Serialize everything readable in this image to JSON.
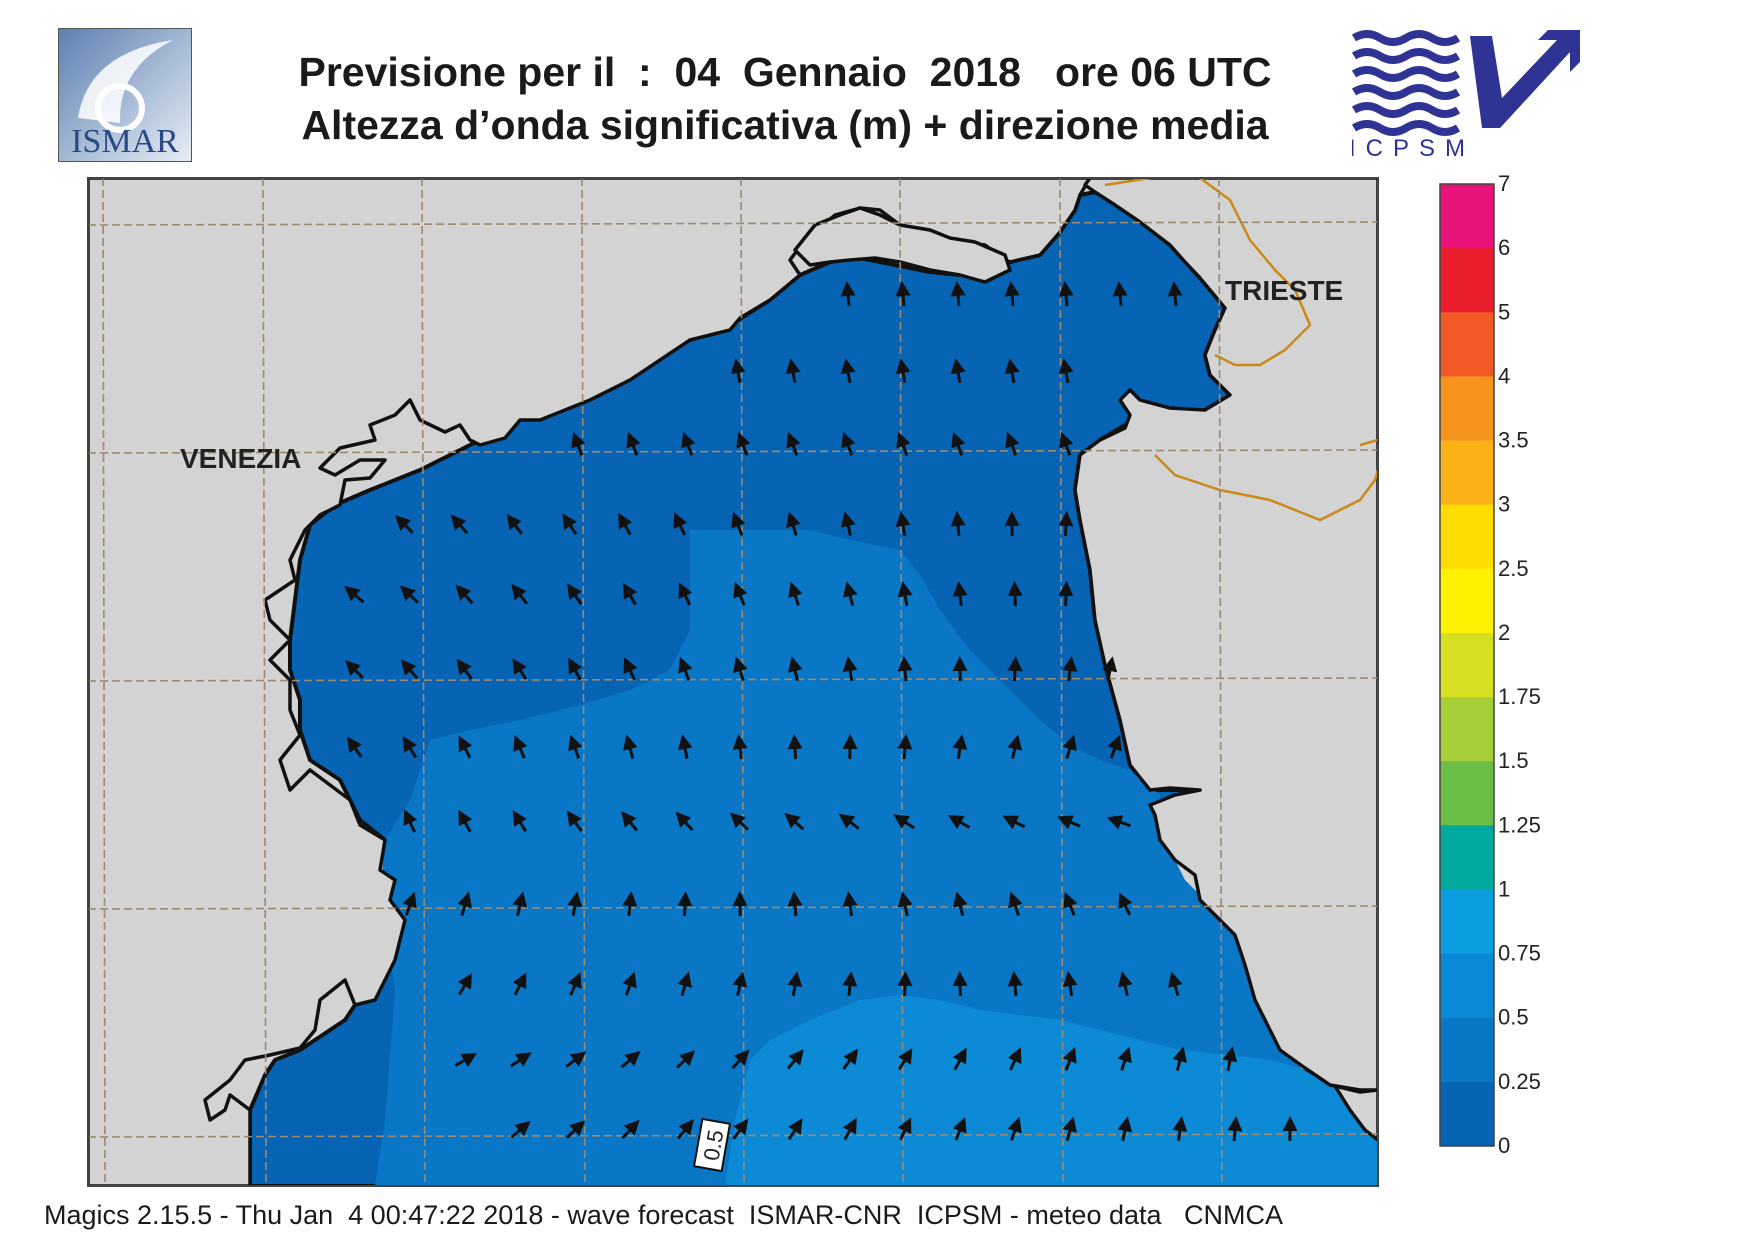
{
  "header": {
    "title_line1": "Previsione per il  :  04  Gennaio  2018   ore 06 UTC",
    "title_line2": "Altezza d’onda significativa (m) + direzione media",
    "logo_left": "ISMAR",
    "logo_right": "ICPSM"
  },
  "map": {
    "labels": {
      "venezia": "VENEZIA",
      "trieste": "TRIESTE"
    },
    "contour_label": "0.5",
    "ocean_colors": {
      "band_0_0.25": "#0763b4",
      "band_0.25_0.5": "#0a76c6",
      "band_0.5_0.75": "#0c8ad6"
    },
    "land_color": "#d3d3d3",
    "gridlines": true
  },
  "legend": {
    "ticks": [
      "7",
      "6",
      "5",
      "4",
      "3.5",
      "3",
      "2.5",
      "2",
      "1.75",
      "1.5",
      "1.25",
      "1",
      "0.75",
      "0.5",
      "0.25",
      "0"
    ],
    "colors": [
      "#e8147a",
      "#ea1d2c",
      "#f15a24",
      "#f7941d",
      "#fbb117",
      "#ffdd00",
      "#fff200",
      "#d7df23",
      "#a6ce39",
      "#6abd45",
      "#00a99d",
      "#0c9ce0",
      "#0a8ad6",
      "#0877c6",
      "#0763b4"
    ]
  },
  "footer": {
    "text": "Magics 2.15.5 - Thu Jan  4 00:47:22 2018 - wave forecast  ISMAR-CNR  ICPSM - meteo data   CNMCA"
  }
}
